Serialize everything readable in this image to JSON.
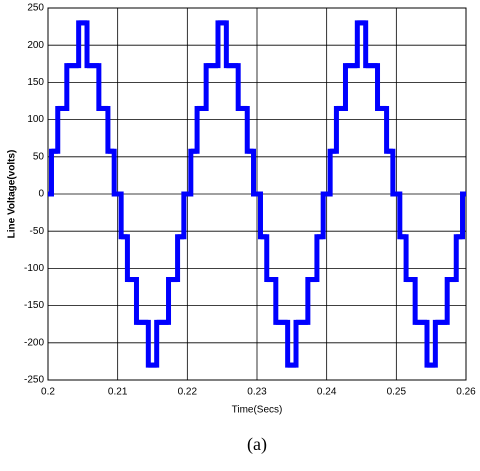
{
  "chart_data": {
    "type": "step",
    "xlabel": "Time(Secs)",
    "ylabel": "Line Voltage(volts)",
    "caption": "(a)",
    "x": [
      0.2,
      0.2005,
      0.2014,
      0.2027,
      0.2044,
      0.2056,
      0.2073,
      0.2086,
      0.2095,
      0.2105,
      0.2114,
      0.2127,
      0.2144,
      0.2156,
      0.2173,
      0.2186,
      0.2195,
      0.2205,
      0.2214,
      0.2227,
      0.2244,
      0.2256,
      0.2273,
      0.2286,
      0.2295,
      0.2305,
      0.2314,
      0.2327,
      0.2344,
      0.2356,
      0.2373,
      0.2386,
      0.2395,
      0.2405,
      0.2414,
      0.2427,
      0.2444,
      0.2456,
      0.2473,
      0.2486,
      0.2495,
      0.2505,
      0.2514,
      0.2527,
      0.2544,
      0.2556,
      0.2573,
      0.2586,
      0.2595,
      0.26
    ],
    "series": [
      {
        "color": "#0000ff",
        "values": [
          0,
          57.5,
          115,
          172.5,
          230,
          172.5,
          115,
          57.5,
          0,
          -57.5,
          -115,
          -172.5,
          -230,
          -172.5,
          -115,
          -57.5,
          0,
          57.5,
          115,
          172.5,
          230,
          172.5,
          115,
          57.5,
          0,
          -57.5,
          -115,
          -172.5,
          -230,
          -172.5,
          -115,
          -57.5,
          0,
          57.5,
          115,
          172.5,
          230,
          172.5,
          115,
          57.5,
          0,
          -57.5,
          -115,
          -172.5,
          -230,
          -172.5,
          -115,
          -57.5,
          0,
          0
        ]
      }
    ],
    "xlim": [
      0.2,
      0.26
    ],
    "xticks": [
      0.2,
      0.21,
      0.22,
      0.23,
      0.24,
      0.25,
      0.26
    ],
    "ylim": [
      -250,
      250
    ],
    "yticks": [
      -250,
      -200,
      -150,
      -100,
      -50,
      0,
      50,
      100,
      150,
      200,
      250
    ],
    "grid": true
  }
}
